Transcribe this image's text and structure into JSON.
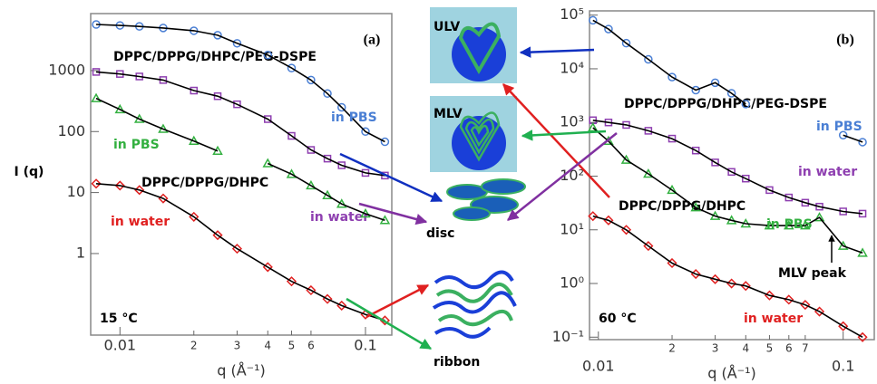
{
  "chart_data": [
    {
      "type": "line",
      "panel_label": "(a)",
      "temperature": "15 °C",
      "xlabel": "q (Å⁻¹)",
      "ylabel": "I (q)",
      "xscale": "log",
      "yscale": "log",
      "xlim": [
        0.0076,
        0.128
      ],
      "ylim": [
        0.046,
        8600
      ],
      "xticks": [
        0.01,
        {
          "value": 0.02,
          "label": "2"
        },
        {
          "value": 0.03,
          "label": "3"
        },
        {
          "value": 0.04,
          "label": "4"
        },
        {
          "value": 0.05,
          "label": "5"
        },
        {
          "value": 0.06,
          "label": "6"
        },
        0.1
      ],
      "yticks": [
        1,
        10,
        100,
        1000
      ],
      "fit_color": "#000000",
      "annotations": [
        "DPPC/DPPG/DHPC/PEG-DSPE",
        "DPPC/DPPG/DHPC"
      ],
      "x": [
        0.008,
        0.01,
        0.012,
        0.015,
        0.02,
        0.025,
        0.03,
        0.04,
        0.05,
        0.06,
        0.07,
        0.08,
        0.1,
        0.12
      ],
      "series": [
        {
          "name": "in PBS",
          "color": "#4a7fd4",
          "marker": "circle",
          "values": [
            5700,
            5500,
            5300,
            5000,
            4500,
            3800,
            2800,
            1800,
            1100,
            700,
            420,
            250,
            100,
            68
          ]
        },
        {
          "name": "in water",
          "color": "#8e3fb0",
          "marker": "square",
          "values": [
            950,
            880,
            800,
            700,
            470,
            380,
            280,
            160,
            85,
            50,
            36,
            28,
            21,
            19
          ]
        },
        {
          "name": "in PBS",
          "color": "#33b040",
          "marker": "triangle",
          "values": [
            350,
            230,
            160,
            110,
            70,
            48,
            null,
            30,
            20,
            13,
            9,
            6.5,
            4.5,
            3.5
          ]
        },
        {
          "name": "in water",
          "color": "#e02020",
          "marker": "diamond",
          "values": [
            14,
            13,
            11,
            8,
            4,
            2,
            1.2,
            0.6,
            0.35,
            0.25,
            0.18,
            0.14,
            0.1,
            0.08
          ]
        }
      ]
    },
    {
      "type": "line",
      "panel_label": "(b)",
      "temperature": "60 °C",
      "xlabel": "q (Å⁻¹)",
      "xscale": "log",
      "yscale": "log",
      "xlim": [
        0.0092,
        0.134
      ],
      "ylim": [
        0.09,
        120000
      ],
      "xticks": [
        0.01,
        {
          "value": 0.02,
          "label": "2"
        },
        {
          "value": 0.03,
          "label": "3"
        },
        {
          "value": 0.04,
          "label": "4"
        },
        {
          "value": 0.05,
          "label": "5"
        },
        {
          "value": 0.06,
          "label": "6"
        },
        {
          "value": 0.07,
          "label": "7"
        },
        0.1
      ],
      "yticks": [
        {
          "value": 0.1,
          "label": "10⁻¹"
        },
        {
          "value": 1,
          "label": "10⁰"
        },
        {
          "value": 10,
          "label": "10¹"
        },
        {
          "value": 100,
          "label": "10²"
        },
        {
          "value": 1000,
          "label": "10³"
        },
        {
          "value": 10000,
          "label": "10⁴"
        },
        {
          "value": 100000,
          "label": "10⁵"
        }
      ],
      "fit_color": "#000000",
      "annotations": [
        "DPPC/DPPG/DHPC/PEG-DSPE",
        "DPPC/DPPG/DHPC",
        "MLV peak"
      ],
      "x": [
        0.0095,
        0.011,
        0.013,
        0.016,
        0.02,
        0.025,
        0.03,
        0.035,
        0.04,
        0.05,
        0.06,
        0.07,
        0.08,
        0.1,
        0.12
      ],
      "series": [
        {
          "name": "in PBS",
          "color": "#4a7fd4",
          "marker": "circle",
          "values": [
            80000,
            55000,
            30000,
            15000,
            7000,
            4000,
            5500,
            3500,
            2200,
            null,
            null,
            null,
            null,
            580,
            430
          ]
        },
        {
          "name": "in water",
          "color": "#8e3fb0",
          "marker": "square",
          "values": [
            1100,
            1000,
            900,
            700,
            500,
            300,
            180,
            120,
            90,
            55,
            40,
            32,
            27,
            22,
            20
          ]
        },
        {
          "name": "in PBS",
          "color": "#33b040",
          "marker": "triangle",
          "values": [
            800,
            450,
            200,
            110,
            55,
            26,
            18,
            15,
            13,
            12,
            12,
            12,
            17,
            5,
            3.7
          ]
        },
        {
          "name": "in water",
          "color": "#e02020",
          "marker": "diamond",
          "values": [
            18,
            15,
            10,
            5,
            2.4,
            1.5,
            1.2,
            1,
            0.9,
            0.6,
            0.5,
            0.4,
            0.3,
            0.16,
            0.1
          ]
        }
      ]
    }
  ],
  "diagram": {
    "labels": [
      "ULV",
      "MLV",
      "disc",
      "ribbon"
    ]
  }
}
